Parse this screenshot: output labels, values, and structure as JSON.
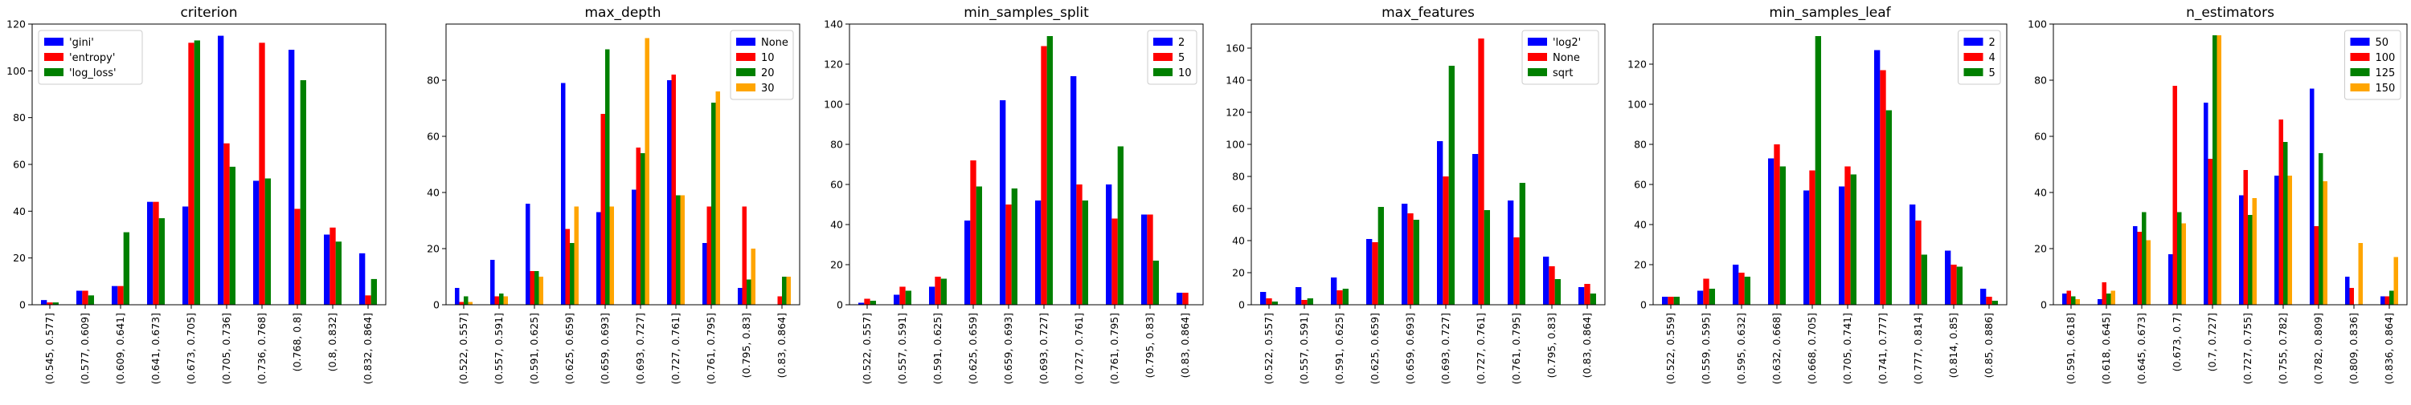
{
  "colors": {
    "blue": "#0000ff",
    "red": "#ff0000",
    "green": "#008000",
    "orange": "#ffa500"
  },
  "chart_data": [
    {
      "type": "bar",
      "title": "criterion",
      "ylim": [
        0,
        120
      ],
      "yticks": [
        0,
        20,
        40,
        60,
        80,
        100,
        120
      ],
      "legend_position": "top-left",
      "categories": [
        "(0.545, 0.577]",
        "(0.577, 0.609]",
        "(0.609, 0.641]",
        "(0.641, 0.673]",
        "(0.673, 0.705]",
        "(0.705, 0.736]",
        "(0.736, 0.768]",
        "(0.768, 0.8]",
        "(0.8, 0.832]",
        "(0.832, 0.864]"
      ],
      "series": [
        {
          "name": "'gini'",
          "color": "blue",
          "values": [
            2,
            6,
            8,
            44,
            42,
            115,
            53,
            109,
            30,
            22
          ]
        },
        {
          "name": "'entropy'",
          "color": "red",
          "values": [
            1,
            6,
            8,
            44,
            112,
            69,
            112,
            41,
            33,
            4
          ]
        },
        {
          "name": "'log_loss'",
          "color": "green",
          "values": [
            1,
            4,
            31,
            37,
            113,
            59,
            54,
            96,
            27,
            11
          ]
        }
      ]
    },
    {
      "type": "bar",
      "title": "max_depth",
      "ylim": [
        0,
        100
      ],
      "yticks": [
        0,
        20,
        40,
        60,
        80
      ],
      "legend_position": "top-right",
      "categories": [
        "(0.522, 0.557]",
        "(0.557, 0.591]",
        "(0.591, 0.625]",
        "(0.625, 0.659]",
        "(0.659, 0.693]",
        "(0.693, 0.727]",
        "(0.727, 0.761]",
        "(0.761, 0.795]",
        "(0.795, 0.83]",
        "(0.83, 0.864]"
      ],
      "series": [
        {
          "name": "None",
          "color": "blue",
          "values": [
            6,
            16,
            36,
            79,
            33,
            41,
            80,
            22,
            6,
            0
          ]
        },
        {
          "name": "10",
          "color": "red",
          "values": [
            1,
            3,
            12,
            27,
            68,
            56,
            82,
            35,
            35,
            3
          ]
        },
        {
          "name": "20",
          "color": "green",
          "values": [
            3,
            4,
            12,
            22,
            91,
            54,
            39,
            72,
            9,
            10
          ]
        },
        {
          "name": "30",
          "color": "orange",
          "values": [
            1,
            3,
            10,
            35,
            35,
            95,
            39,
            76,
            20,
            10
          ]
        }
      ]
    },
    {
      "type": "bar",
      "title": "min_samples_split",
      "ylim": [
        0,
        140
      ],
      "yticks": [
        0,
        20,
        40,
        60,
        80,
        100,
        120,
        140
      ],
      "legend_position": "top-right",
      "categories": [
        "(0.522, 0.557]",
        "(0.557, 0.591]",
        "(0.591, 0.625]",
        "(0.625, 0.659]",
        "(0.659, 0.693]",
        "(0.693, 0.727]",
        "(0.727, 0.761]",
        "(0.761, 0.795]",
        "(0.795, 0.83]",
        "(0.83, 0.864]"
      ],
      "series": [
        {
          "name": "2",
          "color": "blue",
          "values": [
            1,
            5,
            9,
            42,
            102,
            52,
            114,
            60,
            45,
            6
          ]
        },
        {
          "name": "5",
          "color": "red",
          "values": [
            3,
            9,
            14,
            72,
            50,
            129,
            60,
            43,
            45,
            6
          ]
        },
        {
          "name": "10",
          "color": "green",
          "values": [
            2,
            7,
            13,
            59,
            58,
            134,
            52,
            79,
            22,
            0
          ]
        }
      ]
    },
    {
      "type": "bar",
      "title": "max_features",
      "ylim": [
        0,
        175
      ],
      "yticks": [
        0,
        20,
        40,
        60,
        80,
        100,
        120,
        140,
        160
      ],
      "legend_position": "top-right",
      "categories": [
        "(0.522, 0.557]",
        "(0.557, 0.591]",
        "(0.591, 0.625]",
        "(0.625, 0.659]",
        "(0.659, 0.693]",
        "(0.693, 0.727]",
        "(0.727, 0.761]",
        "(0.761, 0.795]",
        "(0.795, 0.83]",
        "(0.83, 0.864]"
      ],
      "series": [
        {
          "name": "'log2'",
          "color": "blue",
          "values": [
            8,
            11,
            17,
            41,
            63,
            102,
            94,
            65,
            30,
            11
          ]
        },
        {
          "name": "None",
          "color": "red",
          "values": [
            4,
            3,
            9,
            39,
            57,
            80,
            166,
            42,
            24,
            13
          ]
        },
        {
          "name": "sqrt",
          "color": "green",
          "values": [
            2,
            4,
            10,
            61,
            53,
            149,
            59,
            76,
            16,
            7
          ]
        }
      ]
    },
    {
      "type": "bar",
      "title": "min_samples_leaf",
      "ylim": [
        0,
        140
      ],
      "yticks": [
        0,
        20,
        40,
        60,
        80,
        100,
        120
      ],
      "legend_position": "top-right",
      "categories": [
        "(0.522, 0.559]",
        "(0.559, 0.595]",
        "(0.595, 0.632]",
        "(0.632, 0.668]",
        "(0.668, 0.705]",
        "(0.705, 0.741]",
        "(0.741, 0.777]",
        "(0.777, 0.814]",
        "(0.814, 0.85]",
        "(0.85, 0.886]"
      ],
      "series": [
        {
          "name": "2",
          "color": "blue",
          "values": [
            4,
            7,
            20,
            73,
            57,
            59,
            127,
            50,
            27,
            8
          ]
        },
        {
          "name": "4",
          "color": "red",
          "values": [
            4,
            13,
            16,
            80,
            67,
            69,
            117,
            42,
            20,
            4
          ]
        },
        {
          "name": "5",
          "color": "green",
          "values": [
            4,
            8,
            14,
            69,
            134,
            65,
            97,
            25,
            19,
            2
          ]
        }
      ]
    },
    {
      "type": "bar",
      "title": "n_estimators",
      "ylim": [
        0,
        100
      ],
      "yticks": [
        0,
        20,
        40,
        60,
        80,
        100
      ],
      "legend_position": "top-right",
      "categories": [
        "(0.591, 0.618]",
        "(0.618, 0.645]",
        "(0.645, 0.673]",
        "(0.673, 0.7]",
        "(0.7, 0.727]",
        "(0.727, 0.755]",
        "(0.755, 0.782]",
        "(0.782, 0.809]",
        "(0.809, 0.836]",
        "(0.836, 0.864]"
      ],
      "series": [
        {
          "name": "50",
          "color": "blue",
          "values": [
            4,
            2,
            28,
            18,
            72,
            39,
            46,
            77,
            10,
            3
          ]
        },
        {
          "name": "100",
          "color": "red",
          "values": [
            5,
            8,
            26,
            78,
            52,
            48,
            66,
            28,
            6,
            3
          ]
        },
        {
          "name": "125",
          "color": "green",
          "values": [
            3,
            4,
            33,
            33,
            96,
            32,
            58,
            54,
            0,
            5
          ]
        },
        {
          "name": "150",
          "color": "orange",
          "values": [
            2,
            5,
            23,
            29,
            96,
            38,
            46,
            44,
            22,
            17
          ]
        }
      ]
    }
  ]
}
